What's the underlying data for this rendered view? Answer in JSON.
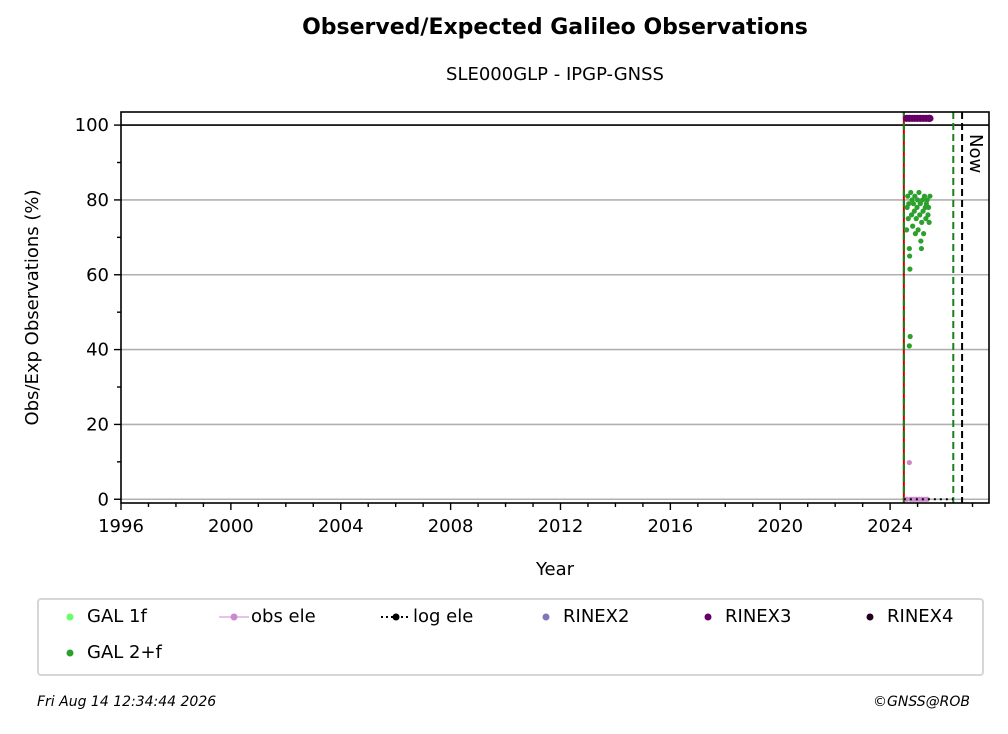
{
  "chart_data": {
    "type": "scatter",
    "title": "Observed/Expected Galileo Observations",
    "subtitle": "SLE000GLP - IPGP-GNSS",
    "xlabel": "Year",
    "ylabel": "Obs/Exp Observations (%)",
    "xlim": [
      1996,
      2027.6
    ],
    "ylim": [
      -1,
      103.5
    ],
    "xticks": [
      "1996",
      "2000",
      "2004",
      "2008",
      "2012",
      "2016",
      "2020",
      "2024"
    ],
    "yticks": [
      "0",
      "20",
      "40",
      "60",
      "80",
      "100"
    ],
    "grid": "horizontal",
    "reference_line_y": 100,
    "vertical_lines": [
      {
        "x": 2024.5,
        "style": "solid",
        "color": "#cc0000"
      },
      {
        "x": 2024.5,
        "style": "dashed",
        "color": "#1a7f1a"
      },
      {
        "x": 2026.3,
        "style": "dashed",
        "color": "#1a7f1a"
      },
      {
        "x": 2026.62,
        "style": "dashed",
        "color": "#000000",
        "label": "Now"
      }
    ],
    "series": [
      {
        "name": "GAL 1f",
        "color": "#66ff66",
        "marker": "dot",
        "points": []
      },
      {
        "name": "GAL 2+f",
        "color": "#2ca02c",
        "marker": "dot",
        "points": [
          [
            2024.6,
            72
          ],
          [
            2024.62,
            78
          ],
          [
            2024.64,
            81
          ],
          [
            2024.66,
            75
          ],
          [
            2024.68,
            79
          ],
          [
            2024.7,
            67
          ],
          [
            2024.71,
            65
          ],
          [
            2024.72,
            61.5
          ],
          [
            2024.73,
            43.5
          ],
          [
            2024.7,
            41
          ],
          [
            2024.75,
            82
          ],
          [
            2024.78,
            76
          ],
          [
            2024.8,
            80
          ],
          [
            2024.82,
            73
          ],
          [
            2024.85,
            79
          ],
          [
            2024.88,
            77
          ],
          [
            2024.9,
            81
          ],
          [
            2024.92,
            71
          ],
          [
            2024.95,
            75
          ],
          [
            2024.98,
            78
          ],
          [
            2025.0,
            80
          ],
          [
            2025.02,
            72
          ],
          [
            2025.05,
            82
          ],
          [
            2025.08,
            76
          ],
          [
            2025.1,
            79
          ],
          [
            2025.12,
            69
          ],
          [
            2025.14,
            67
          ],
          [
            2025.15,
            74
          ],
          [
            2025.18,
            80
          ],
          [
            2025.2,
            77
          ],
          [
            2025.22,
            71
          ],
          [
            2025.25,
            81
          ],
          [
            2025.28,
            78
          ],
          [
            2025.3,
            75
          ],
          [
            2025.32,
            79
          ],
          [
            2025.35,
            80
          ],
          [
            2025.38,
            76
          ],
          [
            2025.4,
            78
          ],
          [
            2025.42,
            74
          ],
          [
            2025.45,
            81
          ]
        ]
      },
      {
        "name": "obs ele",
        "color": "#cc88cc",
        "marker": "dot",
        "points": [
          [
            2024.6,
            0
          ],
          [
            2024.7,
            9.8
          ],
          [
            2024.75,
            0
          ],
          [
            2024.85,
            0
          ],
          [
            2024.95,
            0
          ],
          [
            2025.05,
            0
          ],
          [
            2025.15,
            0
          ],
          [
            2025.25,
            0
          ],
          [
            2025.35,
            0
          ]
        ]
      },
      {
        "name": "log ele",
        "color": "#000000",
        "marker": "dotted-line",
        "points": [
          [
            2024.5,
            0
          ],
          [
            2026.3,
            0
          ]
        ]
      },
      {
        "name": "RINEX2",
        "color": "#8077bb",
        "marker": "dot",
        "points": []
      },
      {
        "name": "RINEX3",
        "color": "#660066",
        "marker": "dot",
        "points": [
          [
            2024.6,
            101.8
          ],
          [
            2024.7,
            101.8
          ],
          [
            2024.8,
            101.8
          ],
          [
            2024.9,
            101.8
          ],
          [
            2025.0,
            101.8
          ],
          [
            2025.1,
            101.8
          ],
          [
            2025.2,
            101.8
          ],
          [
            2025.3,
            101.8
          ],
          [
            2025.4,
            101.8
          ],
          [
            2025.45,
            101.8
          ]
        ]
      },
      {
        "name": "RINEX4",
        "color": "#220022",
        "marker": "dot",
        "points": []
      }
    ]
  },
  "legend": {
    "items": [
      {
        "label": "GAL 1f",
        "color": "#66ff66",
        "marker": "dot"
      },
      {
        "label": "obs ele",
        "color": "#cc88cc",
        "marker": "dot-line"
      },
      {
        "label": "log ele",
        "color": "#000000",
        "marker": "dotted-line"
      },
      {
        "label": "RINEX2",
        "color": "#8077bb",
        "marker": "dot"
      },
      {
        "label": "RINEX3",
        "color": "#660066",
        "marker": "dot"
      },
      {
        "label": "RINEX4",
        "color": "#220022",
        "marker": "dot"
      },
      {
        "label": "GAL 2+f",
        "color": "#2ca02c",
        "marker": "dot"
      }
    ]
  },
  "footer": {
    "timestamp": "Fri Aug 14 12:34:44 2026",
    "credit": "©GNSS@ROB"
  }
}
